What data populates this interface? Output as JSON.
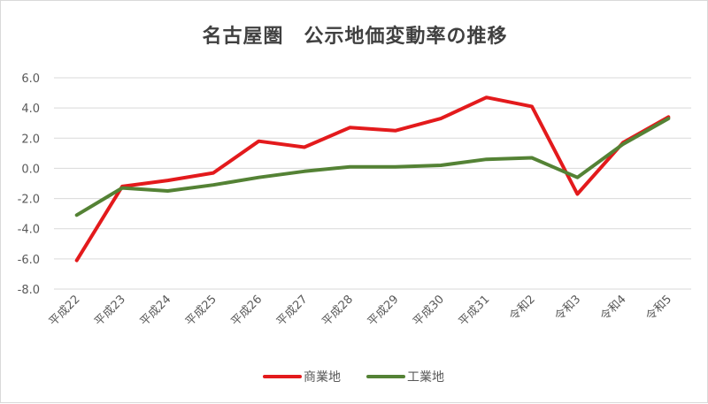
{
  "chart_data": {
    "type": "line",
    "title": "名古屋圏　公示地価変動率の推移",
    "categories": [
      "平成22",
      "平成23",
      "平成24",
      "平成25",
      "平成26",
      "平成27",
      "平成28",
      "平成29",
      "平成30",
      "平成31",
      "令和2",
      "令和3",
      "令和4",
      "令和5"
    ],
    "y_tick_labels": [
      "6.0",
      "4.0",
      "2.0",
      "0.0",
      "-2.0",
      "-4.0",
      "-6.0",
      "-8.0"
    ],
    "ylim": [
      -8,
      6
    ],
    "grid": true,
    "legend_position": "bottom",
    "series": [
      {
        "name": "商業地",
        "color": "#e31a1c",
        "values": [
          -6.1,
          -1.2,
          -0.8,
          -0.3,
          1.8,
          1.4,
          2.7,
          2.5,
          3.3,
          4.7,
          4.1,
          -1.7,
          1.7,
          3.4
        ]
      },
      {
        "name": "工業地",
        "color": "#548235",
        "values": [
          -3.1,
          -1.3,
          -1.5,
          -1.1,
          -0.6,
          -0.2,
          0.1,
          0.1,
          0.2,
          0.6,
          0.7,
          -0.6,
          1.6,
          3.3
        ]
      }
    ]
  }
}
